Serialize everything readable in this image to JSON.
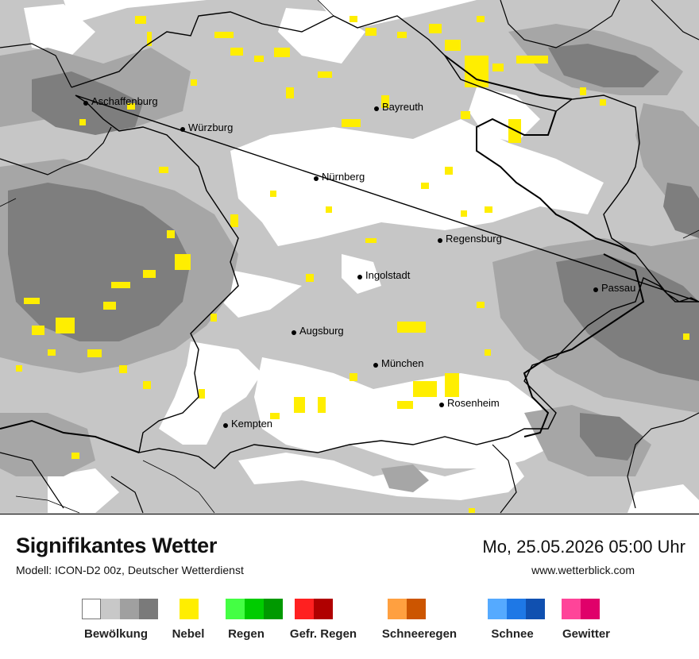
{
  "map": {
    "cities": [
      {
        "name": "Aschaffenburg"
      },
      {
        "name": "Würzburg"
      },
      {
        "name": "Bayreuth"
      },
      {
        "name": "Nürnberg"
      },
      {
        "name": "Regensburg"
      },
      {
        "name": "Ingolstadt"
      },
      {
        "name": "Passau"
      },
      {
        "name": "Augsburg"
      },
      {
        "name": "München"
      },
      {
        "name": "Rosenheim"
      },
      {
        "name": "Kempten"
      }
    ]
  },
  "header": {
    "title": "Signifikantes Wetter",
    "subtitle": "Modell: ICON-D2 00z, Deutscher Wetterdienst",
    "datetime": "Mo, 25.05.2026 05:00 Uhr",
    "site": "www.wetterblick.com"
  },
  "legend": [
    {
      "label": "Bewölkung",
      "colors": [
        "#ffffff",
        "#c8c8c8",
        "#a0a0a0",
        "#7a7a7a"
      ]
    },
    {
      "label": "Nebel",
      "colors": [
        "#ffee00"
      ]
    },
    {
      "label": "Regen",
      "colors": [
        "#44ff44",
        "#00cc00",
        "#009900"
      ]
    },
    {
      "label": "Gefr. Regen",
      "colors": [
        "#ff2020",
        "#b00000"
      ]
    },
    {
      "label": "Schneeregen",
      "colors": [
        "#ffa040",
        "#cc5500"
      ]
    },
    {
      "label": "Schnee",
      "colors": [
        "#55aaff",
        "#1e78e6",
        "#1050b0"
      ]
    },
    {
      "label": "Gewitter",
      "colors": [
        "#ff4499",
        "#e0006a"
      ]
    }
  ],
  "colors": {
    "cloud_light": "#c8c8c8",
    "cloud_medium": "#a8a8a8",
    "cloud_dark": "#7d7d7d",
    "fog": "#ffee00"
  }
}
